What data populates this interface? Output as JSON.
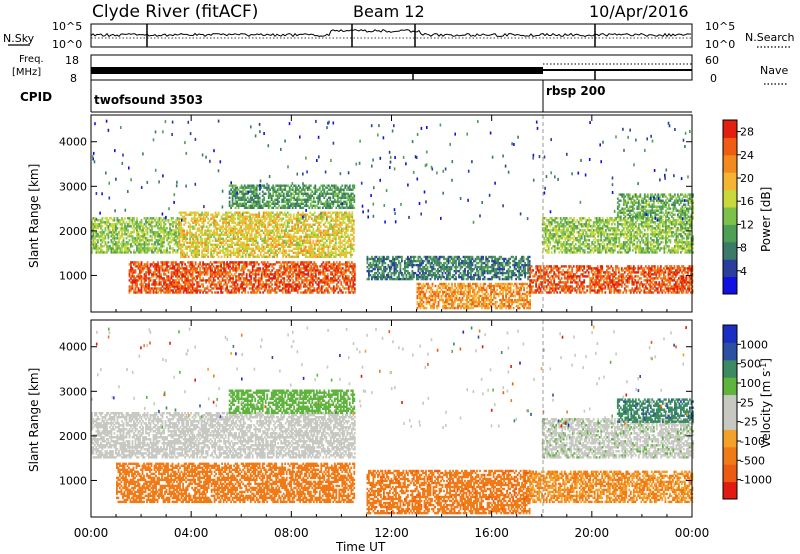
{
  "header": {
    "title": "Clyde River (fitACF)",
    "beam": "Beam 12",
    "date": "10/Apr/2016"
  },
  "nsky_panel": {
    "label": "N.Sky",
    "left_ticks": [
      "10^5",
      "10^0"
    ],
    "right_ticks": [
      "10^5",
      "10^0"
    ],
    "right_label": "N.Search"
  },
  "freq_panel": {
    "label_line1": "Freq.",
    "label_line2": "[MHz]",
    "left_ticks": [
      "18",
      "8"
    ],
    "right_ticks": [
      "60",
      "0"
    ],
    "right_label": "Nave"
  },
  "cpid_panel": {
    "label": "CPID",
    "programs": [
      {
        "name": "twofsound 3503",
        "start_hour": 0
      },
      {
        "name": "rbsp 200",
        "start_hour": 18.1
      }
    ]
  },
  "colors": {
    "power": [
      "#1010e0",
      "#2a3f9c",
      "#3b7a67",
      "#4f9e56",
      "#7cc24a",
      "#c9d83a",
      "#f4b632",
      "#f38a1e",
      "#ef5c12",
      "#e32010"
    ],
    "velocity": [
      "#e11b14",
      "#ed5b12",
      "#f07a16",
      "#f4a12a",
      "#c8c8c2",
      "#c8c8c2",
      "#5fb43e",
      "#3b8a62",
      "#2c4fa3",
      "#1b2ec4"
    ]
  },
  "chart_data": [
    {
      "type": "heatmap",
      "panel": "power",
      "xlabel": "Time UT",
      "ylabel": "Slant Range [km]",
      "x_tick_labels": [
        "00:00",
        "04:00",
        "08:00",
        "12:00",
        "16:00",
        "20:00",
        "00:00"
      ],
      "xlim_hours": [
        0,
        24
      ],
      "ylim_km": [
        180,
        4600
      ],
      "y_tick_labels": [
        "1000",
        "2000",
        "3000",
        "4000"
      ],
      "colorbar": {
        "label": "Power [dB]",
        "tick_labels": [
          "4",
          "8",
          "12",
          "16",
          "20",
          "24",
          "28"
        ],
        "range": [
          0,
          30
        ]
      },
      "bands": [
        {
          "t": [
            0,
            3.5
          ],
          "r": [
            1500,
            2300
          ],
          "level": 14
        },
        {
          "t": [
            1.5,
            10.5
          ],
          "r": [
            600,
            1300
          ],
          "level": 26
        },
        {
          "t": [
            3.5,
            10.5
          ],
          "r": [
            1400,
            2400
          ],
          "level": 18
        },
        {
          "t": [
            5.5,
            10.5
          ],
          "r": [
            2500,
            3000
          ],
          "level": 10
        },
        {
          "t": [
            11,
            17.5
          ],
          "r": [
            900,
            1400
          ],
          "level": 8
        },
        {
          "t": [
            13,
            17.5
          ],
          "r": [
            250,
            800
          ],
          "level": 22
        },
        {
          "t": [
            17.5,
            24
          ],
          "r": [
            600,
            1200
          ],
          "level": 26
        },
        {
          "t": [
            18,
            24
          ],
          "r": [
            1500,
            2300
          ],
          "level": 14
        },
        {
          "t": [
            21,
            24
          ],
          "r": [
            2300,
            2800
          ],
          "level": 12
        }
      ]
    },
    {
      "type": "heatmap",
      "panel": "velocity",
      "xlabel": "Time UT",
      "ylabel": "Slant Range [km]",
      "x_tick_labels": [
        "00:00",
        "04:00",
        "08:00",
        "12:00",
        "16:00",
        "20:00",
        "00:00"
      ],
      "xlim_hours": [
        0,
        24
      ],
      "ylim_km": [
        180,
        4600
      ],
      "y_tick_labels": [
        "1000",
        "2000",
        "3000",
        "4000"
      ],
      "colorbar": {
        "label": "Velocity [m s^-1]",
        "tick_labels": [
          "-1000",
          "-500",
          "-100",
          "-25",
          "25",
          "100",
          "500",
          "1000"
        ]
      },
      "bands": [
        {
          "t": [
            0,
            10.5
          ],
          "r": [
            1500,
            2500
          ],
          "level": 0
        },
        {
          "t": [
            1,
            10.5
          ],
          "r": [
            500,
            1400
          ],
          "level": -300
        },
        {
          "t": [
            5.5,
            10.5
          ],
          "r": [
            2500,
            3000
          ],
          "level": 50
        },
        {
          "t": [
            11,
            17.5
          ],
          "r": [
            250,
            1200
          ],
          "level": -400
        },
        {
          "t": [
            17.5,
            24
          ],
          "r": [
            500,
            1200
          ],
          "level": -100
        },
        {
          "t": [
            18,
            24
          ],
          "r": [
            1500,
            2400
          ],
          "level": 10
        },
        {
          "t": [
            21,
            24
          ],
          "r": [
            2300,
            2800
          ],
          "level": 400
        }
      ]
    }
  ]
}
